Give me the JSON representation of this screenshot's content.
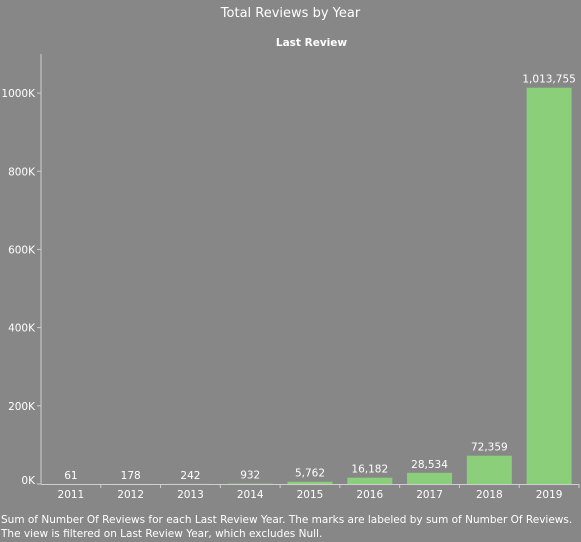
{
  "chart_data": {
    "type": "bar",
    "title": "Total Reviews by Year",
    "header_label": "Last Review",
    "xlabel": "",
    "ylabel": "",
    "categories": [
      "2011",
      "2012",
      "2013",
      "2014",
      "2015",
      "2016",
      "2017",
      "2018",
      "2019"
    ],
    "values": [
      61,
      178,
      242,
      932,
      5762,
      16182,
      28534,
      72359,
      1013755
    ],
    "value_labels": [
      "61",
      "178",
      "242",
      "932",
      "5,762",
      "16,182",
      "28,534",
      "72,359",
      "1,013,755"
    ],
    "ylim": [
      0,
      1100000
    ],
    "y_ticks": [
      0,
      200000,
      400000,
      600000,
      800000,
      1000000
    ],
    "y_tick_labels": [
      "0K",
      "200K",
      "400K",
      "600K",
      "800K",
      "1000K"
    ],
    "grid": false,
    "colors": {
      "background": "#878787",
      "bar": "#8ccf7a",
      "text": "#ffffff",
      "axis": "#cfcfcf"
    }
  },
  "caption": "Sum of Number Of Reviews for each Last Review Year.  The marks are labeled by sum of Number Of Reviews. The view is filtered on Last Review Year, which excludes Null."
}
